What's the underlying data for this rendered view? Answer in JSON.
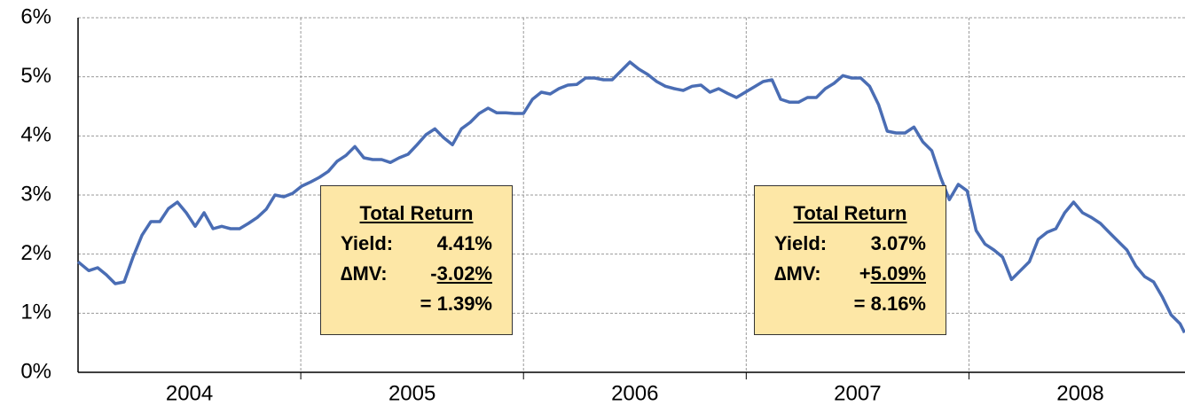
{
  "chart_data": {
    "type": "line",
    "ylim": [
      0,
      6
    ],
    "yticks": [
      {
        "value": 0,
        "label": "0%"
      },
      {
        "value": 1,
        "label": "1%"
      },
      {
        "value": 2,
        "label": "2%"
      },
      {
        "value": 3,
        "label": "3%"
      },
      {
        "value": 4,
        "label": "4%"
      },
      {
        "value": 5,
        "label": "5%"
      },
      {
        "value": 6,
        "label": "6%"
      }
    ],
    "xlim": [
      2004,
      2008.97
    ],
    "xticks": [
      {
        "value": 2004.5,
        "label": "2004"
      },
      {
        "value": 2005.5,
        "label": "2005"
      },
      {
        "value": 2006.5,
        "label": "2006"
      },
      {
        "value": 2007.5,
        "label": "2007"
      },
      {
        "value": 2008.5,
        "label": "2008"
      }
    ],
    "xgrid": [
      2005,
      2006,
      2007,
      2008
    ],
    "grid": true,
    "x": [
      2004.0,
      2004.048,
      2004.088,
      2004.127,
      2004.167,
      2004.207,
      2004.247,
      2004.287,
      2004.327,
      2004.367,
      2004.406,
      2004.446,
      2004.486,
      2004.526,
      2004.566,
      2004.606,
      2004.645,
      2004.685,
      2004.725,
      2004.765,
      2004.805,
      2004.845,
      2004.884,
      2004.924,
      2004.964,
      2005.004,
      2005.044,
      2005.084,
      2005.124,
      2005.163,
      2005.203,
      2005.243,
      2005.283,
      2005.323,
      2005.363,
      2005.402,
      2005.442,
      2005.482,
      2005.522,
      2005.562,
      2005.602,
      2005.641,
      2005.681,
      2005.721,
      2005.761,
      2005.801,
      2005.841,
      2005.88,
      2005.92,
      2005.96,
      2006.0,
      2006.04,
      2006.08,
      2006.12,
      2006.159,
      2006.199,
      2006.239,
      2006.279,
      2006.319,
      2006.359,
      2006.398,
      2006.438,
      2006.478,
      2006.518,
      2006.558,
      2006.598,
      2006.637,
      2006.677,
      2006.717,
      2006.757,
      2006.797,
      2006.837,
      2006.876,
      2006.916,
      2006.956,
      2006.996,
      2007.036,
      2007.076,
      2007.116,
      2007.155,
      2007.195,
      2007.235,
      2007.275,
      2007.315,
      2007.355,
      2007.394,
      2007.434,
      2007.474,
      2007.514,
      2007.554,
      2007.594,
      2007.633,
      2007.673,
      2007.713,
      2007.753,
      2007.793,
      2007.833,
      2007.873,
      2007.912,
      2007.952,
      2007.992,
      2008.032,
      2008.072,
      2008.112,
      2008.151,
      2008.191,
      2008.231,
      2008.271,
      2008.311,
      2008.351,
      2008.39,
      2008.43,
      2008.47,
      2008.51,
      2008.55,
      2008.59,
      2008.629,
      2008.669,
      2008.709,
      2008.749,
      2008.789,
      2008.829,
      2008.869,
      2008.908,
      2008.948,
      2008.968
    ],
    "series": [
      {
        "color": "#4a6db4",
        "values": [
          1.87,
          1.72,
          1.77,
          1.65,
          1.5,
          1.53,
          1.95,
          2.32,
          2.55,
          2.55,
          2.77,
          2.88,
          2.7,
          2.47,
          2.7,
          2.43,
          2.47,
          2.43,
          2.43,
          2.52,
          2.62,
          2.76,
          3.0,
          2.97,
          3.03,
          3.15,
          3.22,
          3.3,
          3.4,
          3.57,
          3.67,
          3.82,
          3.63,
          3.6,
          3.6,
          3.55,
          3.63,
          3.69,
          3.85,
          4.02,
          4.12,
          3.97,
          3.85,
          4.12,
          4.23,
          4.38,
          4.47,
          4.39,
          4.39,
          4.38,
          4.38,
          4.62,
          4.74,
          4.71,
          4.8,
          4.86,
          4.87,
          4.98,
          4.98,
          4.95,
          4.95,
          5.1,
          5.25,
          5.13,
          5.04,
          4.92,
          4.84,
          4.8,
          4.77,
          4.84,
          4.86,
          4.74,
          4.8,
          4.72,
          4.65,
          4.74,
          4.83,
          4.92,
          4.95,
          4.62,
          4.57,
          4.57,
          4.65,
          4.65,
          4.8,
          4.89,
          5.02,
          4.98,
          4.98,
          4.84,
          4.53,
          4.08,
          4.05,
          4.05,
          4.15,
          3.9,
          3.75,
          3.3,
          2.92,
          3.18,
          3.07,
          2.4,
          2.17,
          2.07,
          1.95,
          1.57,
          1.72,
          1.87,
          2.25,
          2.37,
          2.43,
          2.7,
          2.88,
          2.7,
          2.62,
          2.52,
          2.37,
          2.22,
          2.07,
          1.8,
          1.62,
          1.53,
          1.27,
          0.97,
          0.82,
          0.67
        ]
      }
    ],
    "annotations": [
      {
        "title": "Total Return",
        "yield_label": "Yield:",
        "yield": "4.41%",
        "dmv_label": "∆MV:",
        "dmv_sign": "-",
        "dmv": "3.02%",
        "total": "= 1.39%"
      },
      {
        "title": "Total Return",
        "yield_label": "Yield:",
        "yield": "3.07%",
        "dmv_label": "∆MV:",
        "dmv_sign": "+",
        "dmv": "5.09%",
        "total": "= 8.16%"
      }
    ]
  }
}
